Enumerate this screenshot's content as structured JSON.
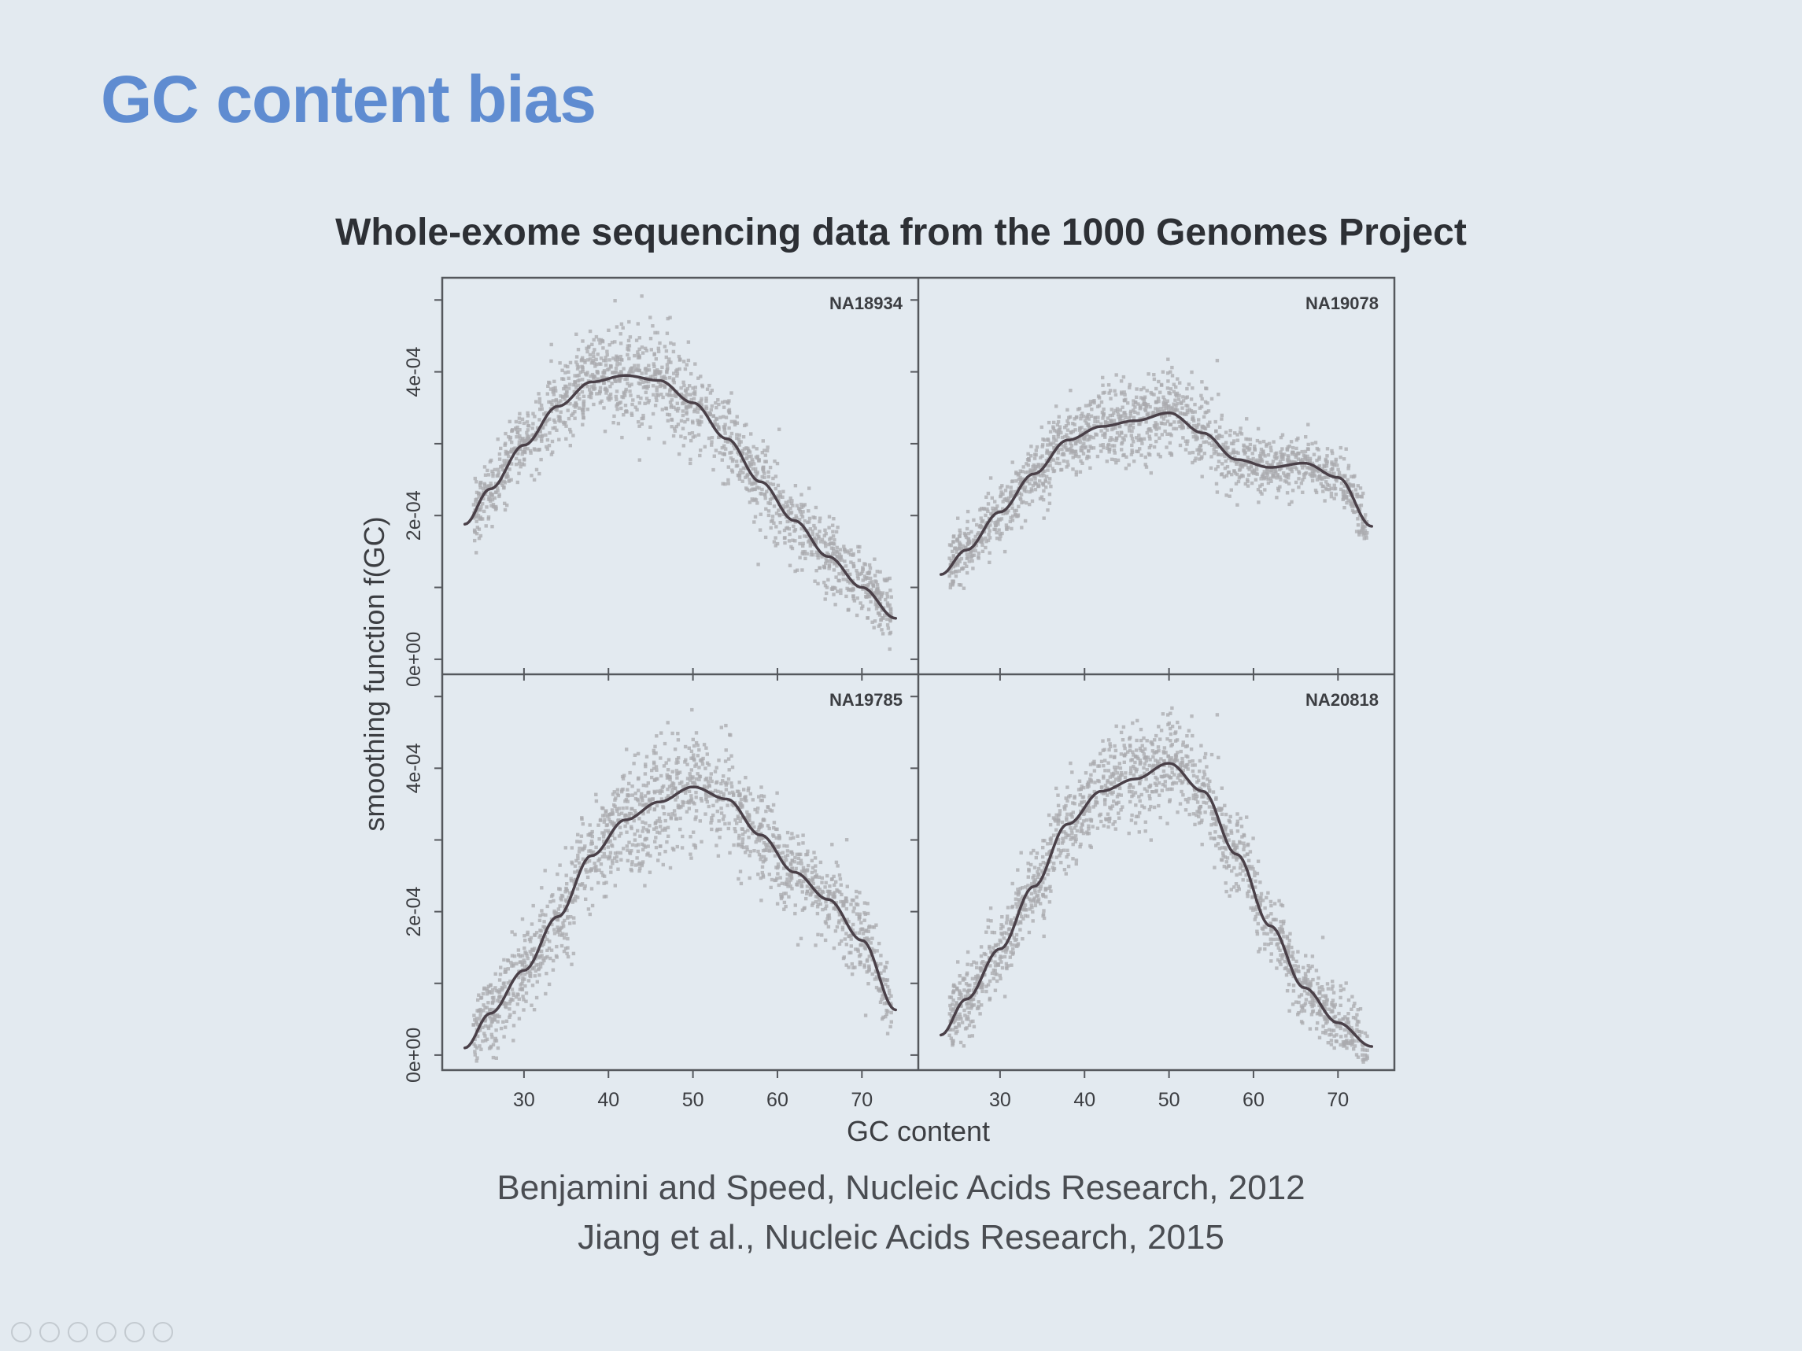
{
  "slide": {
    "title": "GC content bias",
    "figure_title": "Whole-exome sequencing data from the 1000 Genomes Project",
    "citations": [
      "Benjamini and Speed, Nucleic Acids Research, 2012",
      "Jiang et al., Nucleic Acids Research, 2015"
    ]
  },
  "chart_data": {
    "type": "scatter",
    "layout": "2x2 facet grid",
    "xlabel": "GC content",
    "ylabel": "smoothing function f(GC)",
    "xlim": [
      22,
      75
    ],
    "ylim": [
      -1e-05,
      0.00052
    ],
    "x_ticks": [
      30,
      40,
      50,
      60,
      70
    ],
    "y_ticks": [
      0,
      0.0001,
      0.0002,
      0.0003,
      0.0004,
      0.0005
    ],
    "y_tick_labels": {
      "0": "0e+00",
      "0.0002": "2e-04",
      "0.0004": "4e-04"
    },
    "grid": false,
    "point_color": "#a9a9ae",
    "curve_color": "#4a4048",
    "panels": [
      {
        "label": "NA18934",
        "curve_x": [
          23,
          26,
          30,
          34,
          38,
          42,
          46,
          50,
          54,
          58,
          62,
          66,
          70,
          74
        ],
        "curve_y": [
          0.000188,
          0.000237,
          0.000298,
          0.000352,
          0.000386,
          0.000395,
          0.000388,
          0.000357,
          0.000307,
          0.000247,
          0.000193,
          0.000143,
          0.0001,
          5.7e-05
        ],
        "spread": 2.2e-05
      },
      {
        "label": "NA19078",
        "curve_x": [
          23,
          26,
          30,
          34,
          38,
          42,
          46,
          50,
          54,
          58,
          62,
          66,
          70,
          74
        ],
        "curve_y": [
          0.000118,
          0.000152,
          0.000205,
          0.000258,
          0.000305,
          0.000324,
          0.000332,
          0.000343,
          0.000315,
          0.000278,
          0.000267,
          0.000273,
          0.000253,
          0.000185
        ],
        "spread": 1.8e-05
      },
      {
        "label": "NA19785",
        "curve_x": [
          23,
          26,
          30,
          34,
          38,
          42,
          46,
          50,
          54,
          58,
          62,
          66,
          70,
          74
        ],
        "curve_y": [
          1e-05,
          5.8e-05,
          0.000118,
          0.000193,
          0.000278,
          0.000328,
          0.000353,
          0.000374,
          0.000357,
          0.000307,
          0.000255,
          0.000217,
          0.00016,
          6.3e-05
        ],
        "spread": 2.6e-05
      },
      {
        "label": "NA20818",
        "curve_x": [
          23,
          26,
          30,
          34,
          38,
          42,
          46,
          50,
          54,
          58,
          62,
          66,
          70,
          74
        ],
        "curve_y": [
          2.8e-05,
          7.8e-05,
          0.000148,
          0.000235,
          0.000322,
          0.000368,
          0.000385,
          0.000407,
          0.000368,
          0.00028,
          0.00018,
          9.4e-05,
          4.5e-05,
          1.2e-05
        ],
        "spread": 2.2e-05
      }
    ]
  }
}
